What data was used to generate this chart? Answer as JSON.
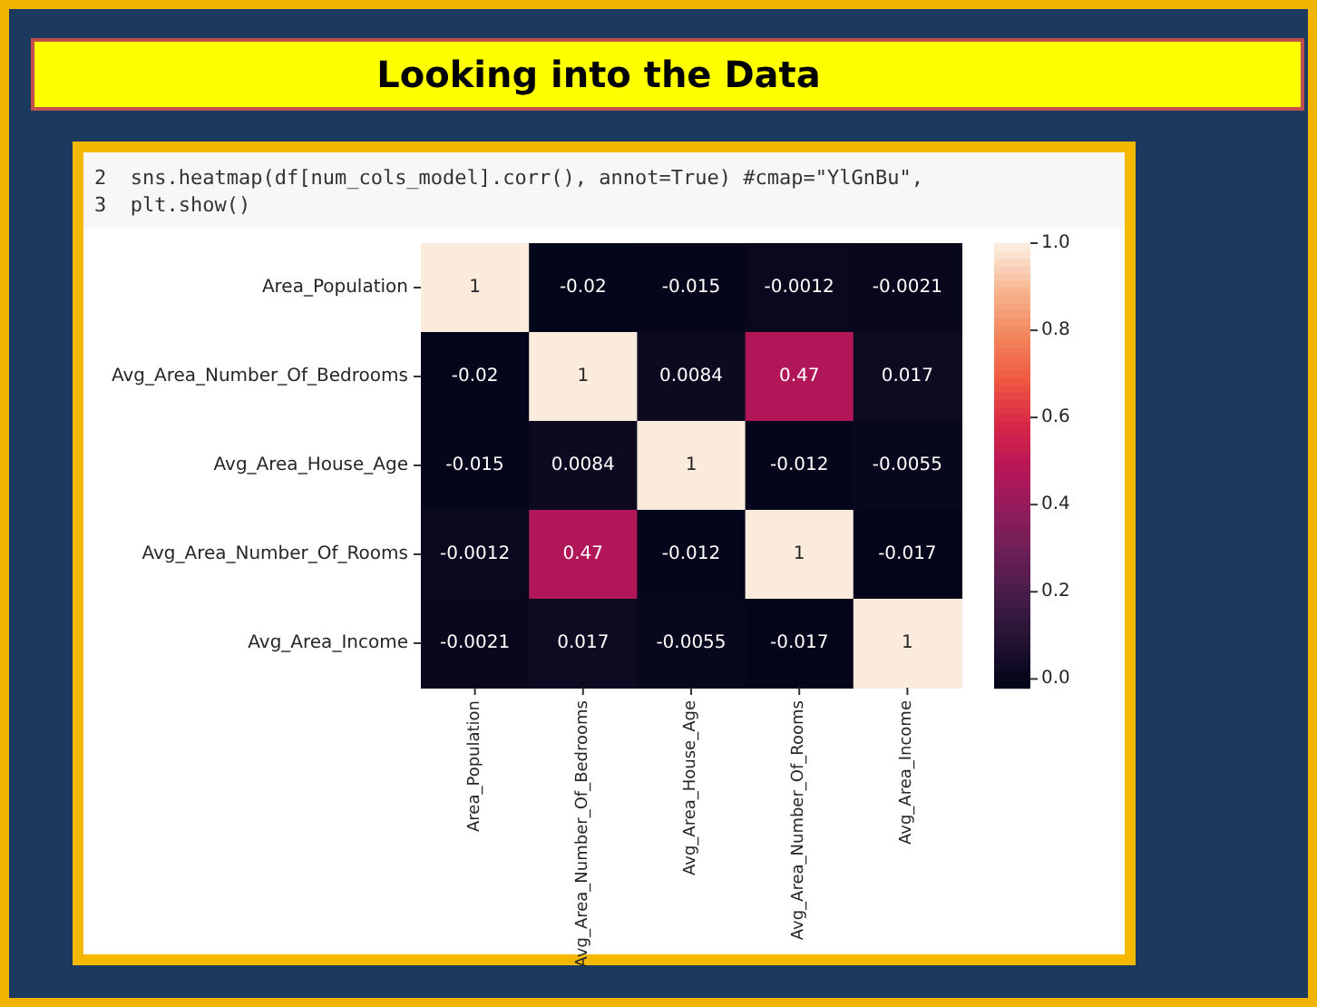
{
  "chart_data": {
    "type": "heatmap",
    "title": "Looking into the Data",
    "annotations": [
      "2  sns.heatmap(df[num_cols_model].corr(), annot=True) #cmap=\"YlGnBu\",",
      "3  plt.show()"
    ],
    "categories": [
      "Area_Population",
      "Avg_Area_Number_Of_Bedrooms",
      "Avg_Area_House_Age",
      "Avg_Area_Number_Of_Rooms",
      "Avg_Area_Income"
    ],
    "y_categories": [
      "Area_Population",
      "Avg_Area_Number_Of_Bedrooms",
      "Avg_Area_House_Age",
      "Avg_Area_Number_Of_Rooms",
      "Avg_Area_Income"
    ],
    "cells": [
      [
        1,
        -0.02,
        -0.015,
        -0.0012,
        -0.0021
      ],
      [
        -0.02,
        1,
        0.0084,
        0.47,
        0.017
      ],
      [
        -0.015,
        0.0084,
        1,
        -0.012,
        -0.0055
      ],
      [
        -0.0012,
        0.47,
        -0.012,
        1,
        -0.017
      ],
      [
        -0.0021,
        0.017,
        -0.0055,
        -0.017,
        1
      ]
    ],
    "data_labels": true,
    "clim": [
      -0.02,
      1
    ],
    "cticks": [
      {
        "value": 0,
        "label": "0.0"
      },
      {
        "value": 0.2,
        "label": "0.2"
      },
      {
        "value": 0.4,
        "label": "0.4"
      },
      {
        "value": 0.6,
        "label": "0.6"
      },
      {
        "value": 0.8,
        "label": "0.8"
      },
      {
        "value": 1,
        "label": "1.0"
      }
    ]
  }
}
